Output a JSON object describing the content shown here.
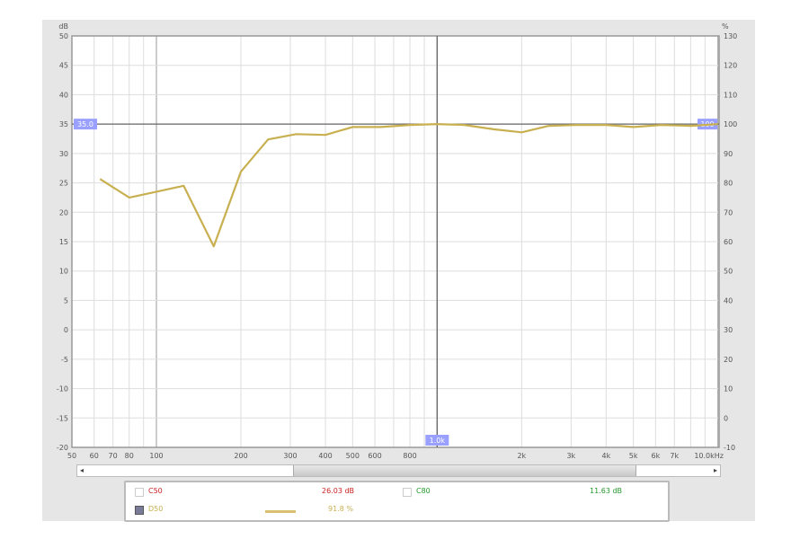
{
  "chart_data": {
    "type": "line",
    "x_scale": "log",
    "xlim": [
      50,
      10100
    ],
    "ylim_left": [
      -20,
      50
    ],
    "ylim_right": [
      -10,
      130
    ],
    "left_axis_unit": "dB",
    "right_axis_unit": "%",
    "x_unit": "kHz",
    "grid": true,
    "left_ticks": [
      "50",
      "45",
      "40",
      "35",
      "30",
      "25",
      "20",
      "15",
      "10",
      "5",
      "0",
      "-5",
      "-10",
      "-15",
      "-20"
    ],
    "right_ticks": [
      "130",
      "120",
      "110",
      "100",
      "90",
      "80",
      "70",
      "60",
      "50",
      "40",
      "30",
      "20",
      "10",
      "0",
      "-10"
    ],
    "x_ticks": [
      {
        "v": 50,
        "label": "50"
      },
      {
        "v": 60,
        "label": "60"
      },
      {
        "v": 70,
        "label": "70"
      },
      {
        "v": 80,
        "label": "80"
      },
      {
        "v": 100,
        "label": "100"
      },
      {
        "v": 200,
        "label": "200"
      },
      {
        "v": 300,
        "label": "300"
      },
      {
        "v": 400,
        "label": "400"
      },
      {
        "v": 500,
        "label": "500"
      },
      {
        "v": 600,
        "label": "600"
      },
      {
        "v": 800,
        "label": "800"
      },
      {
        "v": 2000,
        "label": "2k"
      },
      {
        "v": 3000,
        "label": "3k"
      },
      {
        "v": 4000,
        "label": "4k"
      },
      {
        "v": 5000,
        "label": "5k"
      },
      {
        "v": 6000,
        "label": "6k"
      },
      {
        "v": 7000,
        "label": "7k"
      },
      {
        "v": 10000,
        "label": "10.0kHz"
      }
    ],
    "cursor": {
      "x": 1000,
      "x_label": "1.0k",
      "left_label": "35.0",
      "right_label": "100"
    },
    "series": [
      {
        "name": "D50",
        "axis": "right",
        "color": "#c8b050",
        "x": [
          63,
          80,
          100,
          125,
          160,
          200,
          250,
          315,
          400,
          500,
          630,
          800,
          1000,
          1250,
          1600,
          2000,
          2500,
          3150,
          4000,
          5000,
          6300,
          8000,
          10000
        ],
        "y": [
          81.3,
          75,
          77,
          79,
          58.4,
          83.8,
          94.8,
          96.6,
          96.3,
          99,
          99,
          99.7,
          100,
          99.7,
          98.2,
          97.2,
          99.4,
          99.7,
          99.7,
          99,
          99.7,
          99.4,
          100
        ]
      }
    ]
  },
  "legend": [
    {
      "name": "C50",
      "value": "26.03 dB",
      "color": "#cc2222",
      "checked": false
    },
    {
      "name": "C80",
      "value": "11.63 dB",
      "color": "#22992a",
      "checked": false
    },
    {
      "name": "D50",
      "value": "91.8 %",
      "color": "#c8b050",
      "checked": true
    }
  ],
  "scrollbar": {
    "left_arrow": "◂",
    "right_arrow": "▸"
  }
}
